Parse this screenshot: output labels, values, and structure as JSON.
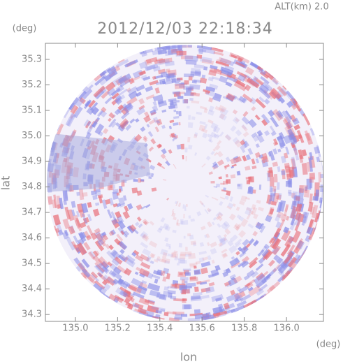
{
  "chart_data": {
    "type": "image",
    "title": "2012/12/03 22:18:34",
    "subtitle": "ALT(km) 2.0",
    "x_label": "lon",
    "y_label": "lat",
    "x_unit": "(deg)",
    "y_unit": "(deg)",
    "xlim": [
      134.858,
      136.175
    ],
    "ylim": [
      34.273,
      35.363
    ],
    "xticks": [
      {
        "value": 135.0,
        "label": "135.0"
      },
      135.2,
      135.4,
      135.6,
      135.8,
      {
        "value": 136.0,
        "label": "136.0"
      }
    ],
    "yticks": [
      34.3,
      34.4,
      34.5,
      34.6,
      34.7,
      34.8,
      34.9,
      {
        "value": 35.0,
        "label": "35.0"
      },
      35.1,
      35.2,
      35.3
    ]
  }
}
